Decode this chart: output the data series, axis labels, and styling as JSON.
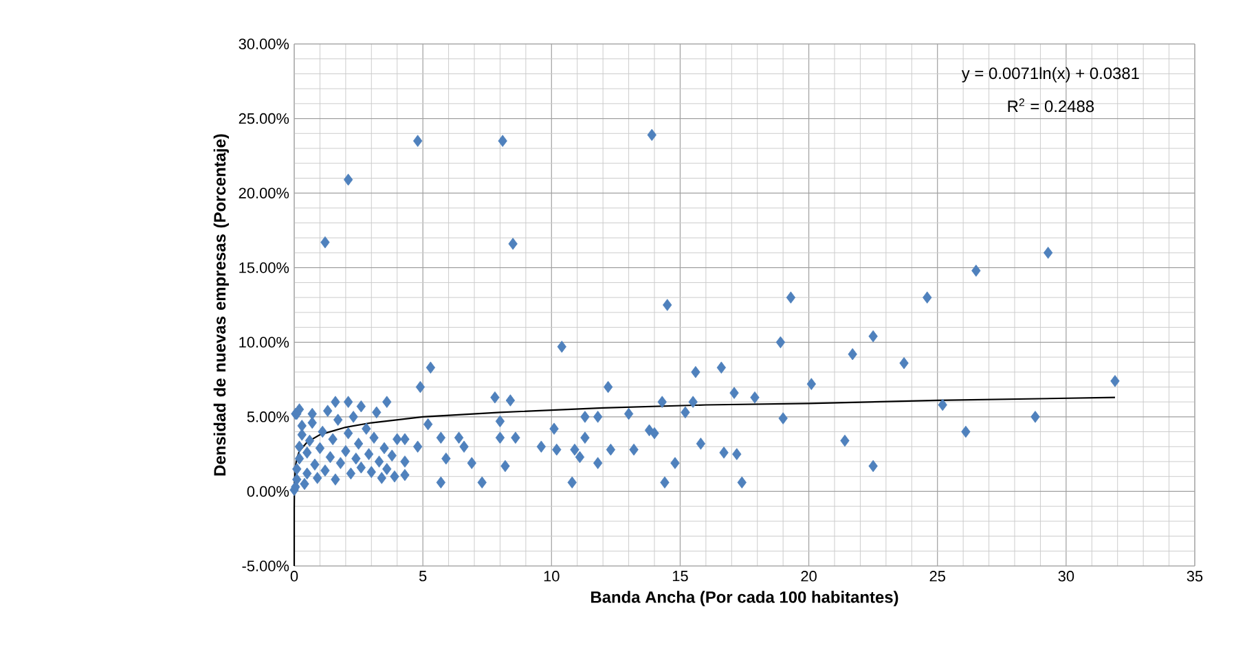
{
  "chart_data": {
    "type": "scatter",
    "xlabel": "Banda Ancha (Por cada 100 habitantes)",
    "ylabel": "Densidad de nuevas empresas (Porcentaje)",
    "annotations": [
      "y = 0.0071ln(x) + 0.0381",
      "R$^{2}$ = 0.2488"
    ],
    "xlim": [
      0,
      35
    ],
    "xticks": [
      0,
      5,
      10,
      15,
      20,
      25,
      30,
      35
    ],
    "ylim": [
      -5,
      30
    ],
    "yticks": [
      {
        "value": -5,
        "label": "-5.00%"
      },
      {
        "value": 0,
        "label": "0.00%"
      },
      {
        "value": 5,
        "label": "5.00%"
      },
      {
        "value": 10,
        "label": "10.00%"
      },
      {
        "value": 15,
        "label": "15.00%"
      },
      {
        "value": 20,
        "label": "20.00%"
      },
      {
        "value": 25,
        "label": "25.00%"
      },
      {
        "value": 30,
        "label": "30.00%"
      }
    ],
    "grid": true,
    "marker": "diamond",
    "series": [
      {
        "color": "#4f81bd",
        "x": [
          4.8,
          8.1,
          13.9,
          2.1,
          1.2,
          8.5,
          14.5,
          19.3,
          24.6,
          26.5,
          29.3,
          18.9,
          22.5,
          21.7,
          23.7,
          20.1,
          31.9,
          17.9,
          25.2,
          19.0,
          28.8,
          26.1,
          21.4,
          22.5,
          17.4,
          17.2,
          10.4,
          5.3,
          4.9,
          15.6,
          16.6,
          12.2,
          17.1,
          7.8,
          8.4,
          14.3,
          15.5,
          3.6,
          13.0,
          15.2,
          5.2,
          8.0,
          10.1,
          11.3,
          11.8,
          13.8,
          14.0,
          11.3,
          8.0,
          8.6,
          5.7,
          6.4,
          6.6,
          4.3,
          4.8,
          9.6,
          10.2,
          15.8,
          10.9,
          11.1,
          12.3,
          13.2,
          11.8,
          16.7,
          5.9,
          6.9,
          8.2,
          14.8,
          5.7,
          7.3,
          10.8,
          14.4,
          0.1,
          0.7,
          1.6,
          2.1,
          2.6,
          3.2,
          4.0,
          4.3,
          3.4,
          4.3,
          0.05,
          0.1,
          0.1,
          0.2,
          0.2,
          0.3,
          0.3,
          0.4,
          0.5,
          0.5,
          0.6,
          0.7,
          0.8,
          0.9,
          1.0,
          1.1,
          1.2,
          1.3,
          1.4,
          1.5,
          1.6,
          1.7,
          1.8,
          2.0,
          2.1,
          2.2,
          2.3,
          2.4,
          2.5,
          2.6,
          2.8,
          2.9,
          3.0,
          3.1,
          3.3,
          3.5,
          3.6,
          3.8,
          3.9,
          0.05,
          0.0,
          0.2
        ],
        "values": [
          23.5,
          23.5,
          23.9,
          20.9,
          16.7,
          16.6,
          12.5,
          13.0,
          13.0,
          14.8,
          16.0,
          10.0,
          10.4,
          9.2,
          8.6,
          7.2,
          7.4,
          6.3,
          5.8,
          4.9,
          5.0,
          4.0,
          3.4,
          1.7,
          0.6,
          2.5,
          9.7,
          8.3,
          7.0,
          8.0,
          8.3,
          7.0,
          6.6,
          6.3,
          6.1,
          6.0,
          6.0,
          6.0,
          5.2,
          5.3,
          4.5,
          4.7,
          4.2,
          5.0,
          5.0,
          4.1,
          3.9,
          3.6,
          3.6,
          3.6,
          3.6,
          3.6,
          3.0,
          3.5,
          3.0,
          3.0,
          2.8,
          3.2,
          2.8,
          2.3,
          2.8,
          2.8,
          1.9,
          2.6,
          2.2,
          1.9,
          1.7,
          1.9,
          0.6,
          0.6,
          0.6,
          0.6,
          5.2,
          5.2,
          6.0,
          6.0,
          5.7,
          5.3,
          3.5,
          1.1,
          0.9,
          2.0,
          0.3,
          0.8,
          1.5,
          2.2,
          3.0,
          3.8,
          4.4,
          0.5,
          1.2,
          2.6,
          3.4,
          4.6,
          1.8,
          0.9,
          2.9,
          4.0,
          1.4,
          5.4,
          2.3,
          3.5,
          0.8,
          4.8,
          1.9,
          2.7,
          3.9,
          1.2,
          5.0,
          2.2,
          3.2,
          1.6,
          4.2,
          2.5,
          1.3,
          3.6,
          2.0,
          2.9,
          1.5,
          2.4,
          1.0,
          5.2,
          0.1,
          5.5
        ]
      },
      {
        "type": "line",
        "color": "#000000",
        "marker": "none",
        "line_style": "solid",
        "x": [
          4e-06,
          0.001,
          0.01,
          0.05,
          0.1,
          0.2,
          0.5,
          1,
          2,
          3,
          5,
          8,
          12,
          16,
          20,
          25,
          31.9
        ],
        "values": [
          -5.0,
          -1.1,
          0.5,
          1.7,
          2.2,
          2.7,
          3.3,
          3.8,
          4.3,
          4.6,
          5.0,
          5.3,
          5.6,
          5.8,
          5.9,
          6.1,
          6.3
        ]
      }
    ]
  }
}
